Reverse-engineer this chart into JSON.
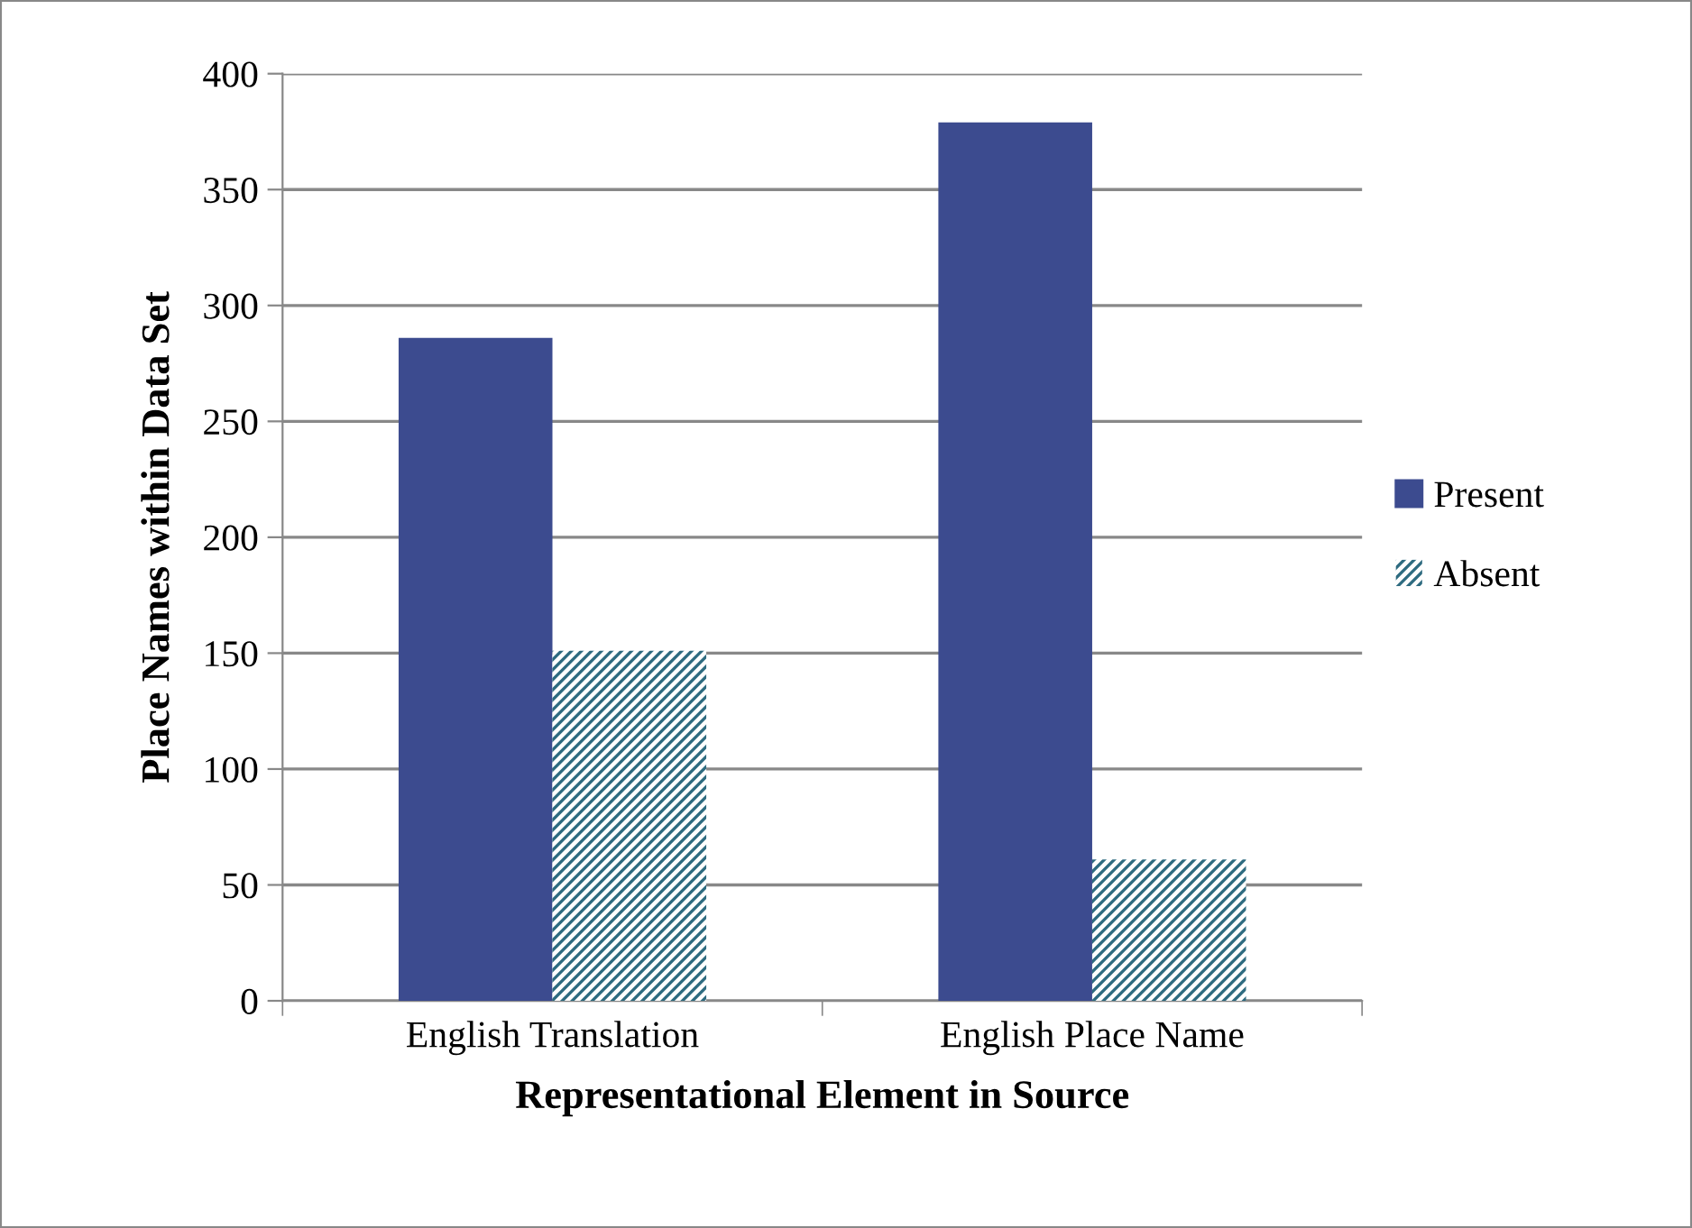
{
  "chart_data": {
    "type": "bar",
    "xlabel": "Representational Element in Source",
    "ylabel": "Place Names within Data Set",
    "categories": [
      "English Translation",
      "English Place Name"
    ],
    "series": [
      {
        "name": "Present",
        "color": "#3c4b8f",
        "values": [
          286,
          379
        ]
      },
      {
        "name": "Absent",
        "color": "#2e6b80",
        "values": [
          151,
          61
        ]
      }
    ],
    "ylim": [
      0,
      400
    ],
    "yticks": [
      0,
      50,
      100,
      150,
      200,
      250,
      300,
      350,
      400
    ],
    "grid": "y",
    "legend": "right"
  }
}
